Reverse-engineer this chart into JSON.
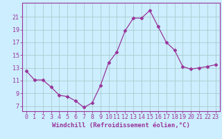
{
  "x": [
    0,
    1,
    2,
    3,
    4,
    5,
    6,
    7,
    8,
    9,
    10,
    11,
    12,
    13,
    14,
    15,
    16,
    17,
    18,
    19,
    20,
    21,
    22,
    23
  ],
  "y": [
    12.5,
    11.1,
    11.1,
    10.0,
    8.7,
    8.5,
    7.8,
    6.8,
    7.5,
    10.2,
    13.8,
    15.5,
    18.8,
    20.8,
    20.8,
    22.0,
    19.5,
    17.0,
    15.8,
    13.2,
    12.8,
    13.0,
    13.2,
    13.5
  ],
  "line_color": "#993399",
  "marker": "D",
  "marker_size": 2.5,
  "bg_color": "#cceeff",
  "grid_color": "#aacccc",
  "xlabel": "Windchill (Refroidissement éolien,°C)",
  "xlabel_color": "#993399",
  "tick_color": "#993399",
  "ylabel_ticks": [
    7,
    9,
    11,
    13,
    15,
    17,
    19,
    21
  ],
  "xticks": [
    0,
    1,
    2,
    3,
    4,
    5,
    6,
    7,
    8,
    9,
    10,
    11,
    12,
    13,
    14,
    15,
    16,
    17,
    18,
    19,
    20,
    21,
    22,
    23
  ],
  "ylim": [
    6.2,
    23.2
  ],
  "xlim": [
    -0.5,
    23.5
  ],
  "label_fontsize": 6.5,
  "tick_fontsize": 6.0
}
